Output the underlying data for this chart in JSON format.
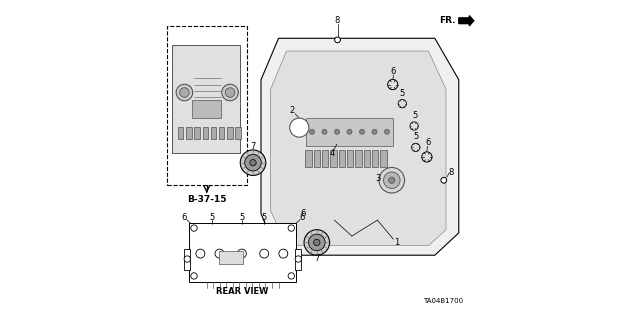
{
  "bg_color": "#ffffff",
  "line_color": "#000000",
  "gray_color": "#888888",
  "light_gray": "#cccccc",
  "diagram_code": "TA04B1700",
  "ref_code": "B-37-15",
  "rear_view_label": "REAR VIEW",
  "fr_label": "FR.",
  "title_bottom": "TA04B1700"
}
